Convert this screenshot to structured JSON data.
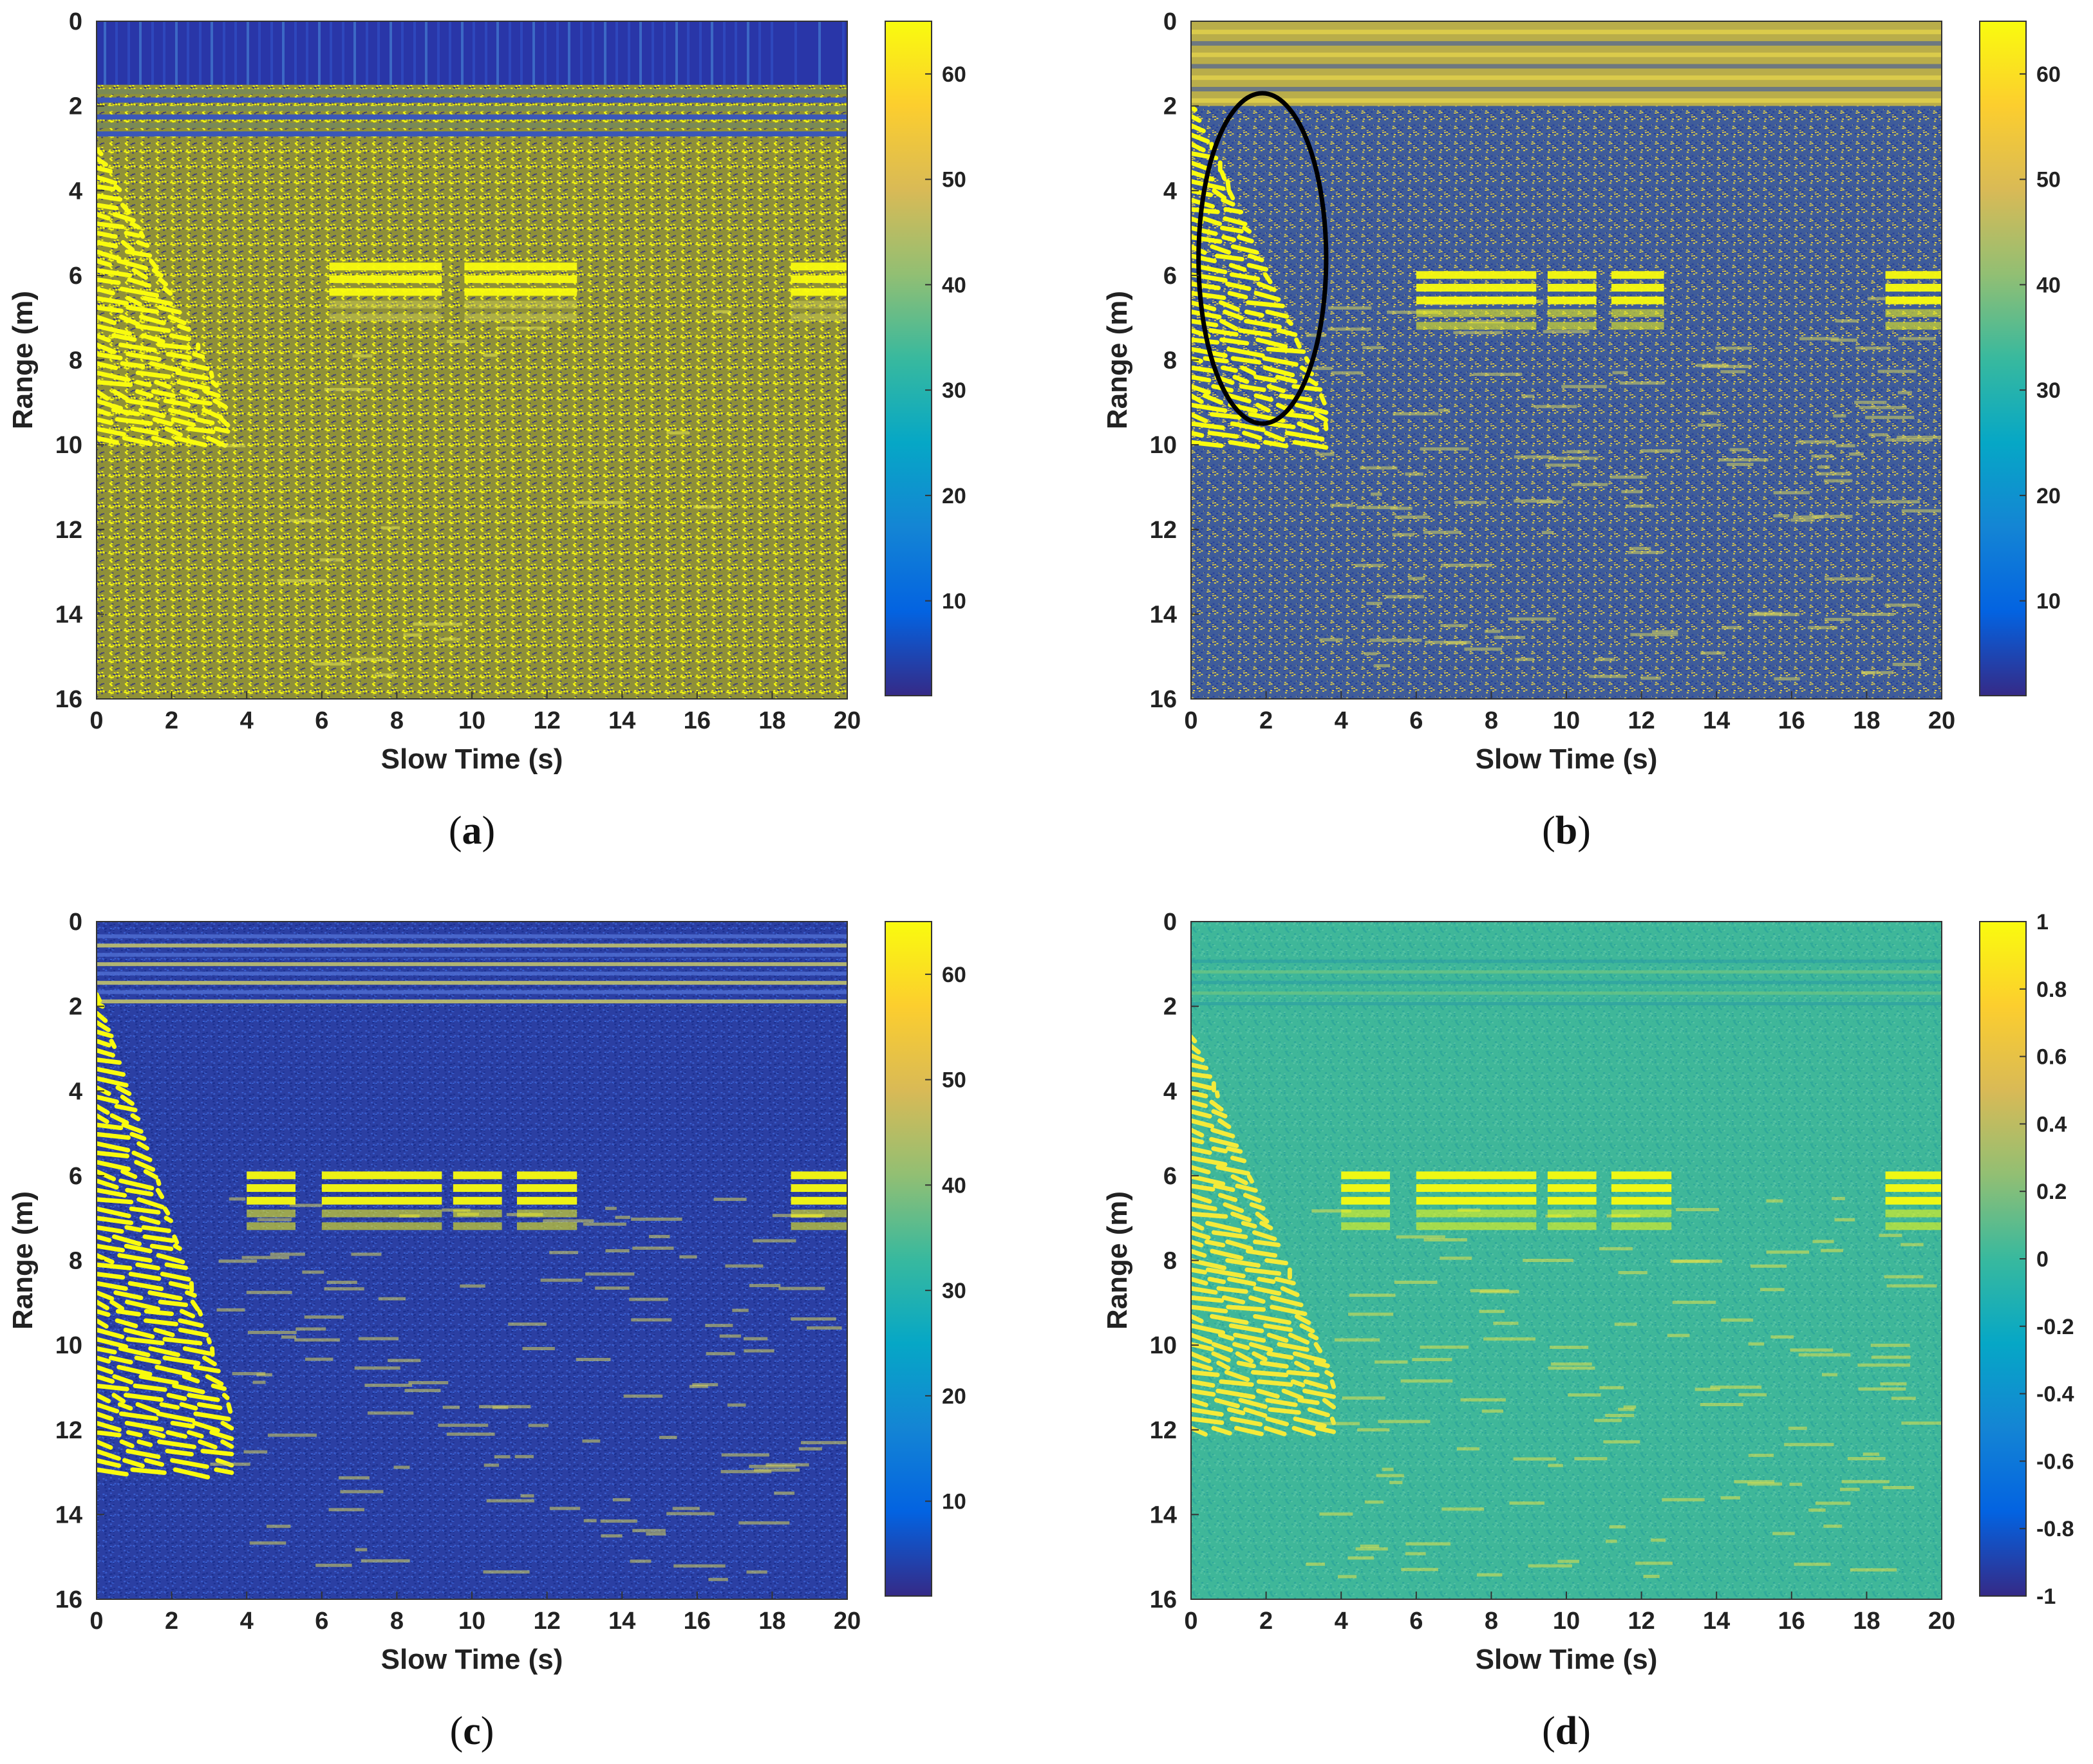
{
  "colors": {
    "parula_dark": "#352a87",
    "parula_blue": "#1f5fd0",
    "parula_teal": "#21b2b8",
    "parula_green": "#7cbf6c",
    "parula_orange": "#fcbf3b",
    "parula_yellow": "#f9fb0e",
    "background_d": "#3fb799"
  },
  "chart_data": [
    {
      "panel": "a",
      "type": "heatmap",
      "label_open": "(",
      "label_letter": "a",
      "label_close": ")",
      "xlabel": "Slow Time (s)",
      "ylabel": "Range (m)",
      "xlim": [
        0,
        20
      ],
      "ylim": [
        0,
        16
      ],
      "xticks": [
        "0",
        "2",
        "4",
        "6",
        "8",
        "10",
        "12",
        "14",
        "16",
        "18",
        "20"
      ],
      "yticks": [
        "0",
        "2",
        "4",
        "6",
        "8",
        "10",
        "12",
        "14",
        "16"
      ],
      "colorbar": {
        "range": [
          1,
          65
        ],
        "ticks": [
          "10",
          "20",
          "30",
          "40",
          "50",
          "60"
        ],
        "tick_values": [
          10,
          20,
          30,
          40,
          50,
          60
        ]
      },
      "background": "olive-noise",
      "features": {
        "top_band": {
          "range_m": [
            0,
            2.8
          ],
          "style": "dark-blue-strip"
        },
        "slanted_traces": {
          "range_m": [
            2.8,
            10
          ],
          "slow_time_s": [
            0,
            3.5
          ]
        },
        "target_returns": [
          {
            "slow_time_s": [
              6.2,
              9.2
            ],
            "range_m": 6.0
          },
          {
            "slow_time_s": [
              9.8,
              12.8
            ],
            "range_m": 6.0
          },
          {
            "slow_time_s": [
              18.5,
              20
            ],
            "range_m": 6.0
          }
        ]
      }
    },
    {
      "panel": "b",
      "type": "heatmap",
      "label_open": "(",
      "label_letter": "b",
      "label_close": ")",
      "xlabel": "Slow Time (s)",
      "ylabel": "Range (m)",
      "xlim": [
        0,
        20
      ],
      "ylim": [
        0,
        16
      ],
      "xticks": [
        "0",
        "2",
        "4",
        "6",
        "8",
        "10",
        "12",
        "14",
        "16",
        "18",
        "20"
      ],
      "yticks": [
        "0",
        "2",
        "4",
        "6",
        "8",
        "10",
        "12",
        "14",
        "16"
      ],
      "colorbar": {
        "range": [
          1,
          65
        ],
        "ticks": [
          "10",
          "20",
          "30",
          "40",
          "50",
          "60"
        ],
        "tick_values": [
          10,
          20,
          30,
          40,
          50,
          60
        ]
      },
      "background": "blue-noise",
      "features": {
        "top_band": {
          "range_m": [
            0,
            2.0
          ],
          "style": "yellow-strip"
        },
        "slanted_traces": {
          "range_m": [
            1.8,
            10
          ],
          "slow_time_s": [
            0,
            3.6
          ]
        },
        "target_returns": [
          {
            "slow_time_s": [
              6.0,
              9.2
            ],
            "range_m": 6.2
          },
          {
            "slow_time_s": [
              9.5,
              10.8
            ],
            "range_m": 6.2
          },
          {
            "slow_time_s": [
              11.2,
              12.6
            ],
            "range_m": 6.2
          },
          {
            "slow_time_s": [
              18.5,
              20
            ],
            "range_m": 6.2
          }
        ],
        "ellipse": {
          "center_s": 1.9,
          "center_m": 5.6,
          "half_width_s": 1.7,
          "half_height_m": 3.9
        }
      }
    },
    {
      "panel": "c",
      "type": "heatmap",
      "label_open": "(",
      "label_letter": "c",
      "label_close": ")",
      "xlabel": "Slow Time (s)",
      "ylabel": "Range (m)",
      "xlim": [
        0,
        20
      ],
      "ylim": [
        0,
        16
      ],
      "xticks": [
        "0",
        "2",
        "4",
        "6",
        "8",
        "10",
        "12",
        "14",
        "16",
        "18",
        "20"
      ],
      "yticks": [
        "0",
        "2",
        "4",
        "6",
        "8",
        "10",
        "12",
        "14",
        "16"
      ],
      "colorbar": {
        "range": [
          1,
          65
        ],
        "ticks": [
          "10",
          "20",
          "30",
          "40",
          "50",
          "60"
        ],
        "tick_values": [
          10,
          20,
          30,
          40,
          50,
          60
        ]
      },
      "background": "dark-blue",
      "features": {
        "top_band": {
          "range_m": [
            0,
            2.0
          ],
          "style": "stripes"
        },
        "slanted_traces": {
          "range_m": [
            1.5,
            13
          ],
          "slow_time_s": [
            0,
            3.6
          ]
        },
        "target_returns": [
          {
            "slow_time_s": [
              4.0,
              5.3
            ],
            "range_m": 6.2
          },
          {
            "slow_time_s": [
              6.0,
              9.2
            ],
            "range_m": 6.2
          },
          {
            "slow_time_s": [
              9.5,
              10.8
            ],
            "range_m": 6.2
          },
          {
            "slow_time_s": [
              11.2,
              12.8
            ],
            "range_m": 6.2
          },
          {
            "slow_time_s": [
              18.5,
              20
            ],
            "range_m": 6.2
          }
        ]
      }
    },
    {
      "panel": "d",
      "type": "heatmap",
      "label_open": "(",
      "label_letter": "d",
      "label_close": ")",
      "xlabel": "Slow Time (s)",
      "ylabel": "Range (m)",
      "xlim": [
        0,
        20
      ],
      "ylim": [
        0,
        16
      ],
      "xticks": [
        "0",
        "2",
        "4",
        "6",
        "8",
        "10",
        "12",
        "14",
        "16",
        "18",
        "20"
      ],
      "yticks": [
        "0",
        "2",
        "4",
        "6",
        "8",
        "10",
        "12",
        "14",
        "16"
      ],
      "colorbar": {
        "range": [
          -1,
          1
        ],
        "ticks": [
          "1",
          "0.8",
          "0.6",
          "0.4",
          "0.2",
          "0",
          "-0.2",
          "-0.4",
          "-0.6",
          "-0.8",
          "-1"
        ],
        "tick_values": [
          1,
          0.8,
          0.6,
          0.4,
          0.2,
          0,
          -0.2,
          -0.4,
          -0.6,
          -0.8,
          -1
        ]
      },
      "background": "teal-green",
      "features": {
        "top_band": {
          "range_m": [
            0.8,
            2.0
          ],
          "style": "faint"
        },
        "slanted_traces": {
          "range_m": [
            2.5,
            12
          ],
          "slow_time_s": [
            0,
            3.8
          ]
        },
        "target_returns": [
          {
            "slow_time_s": [
              4.0,
              5.3
            ],
            "range_m": 6.2
          },
          {
            "slow_time_s": [
              6.0,
              9.2
            ],
            "range_m": 6.2
          },
          {
            "slow_time_s": [
              9.5,
              10.8
            ],
            "range_m": 6.2
          },
          {
            "slow_time_s": [
              11.2,
              12.8
            ],
            "range_m": 6.2
          },
          {
            "slow_time_s": [
              18.5,
              20
            ],
            "range_m": 6.2
          }
        ]
      }
    }
  ]
}
